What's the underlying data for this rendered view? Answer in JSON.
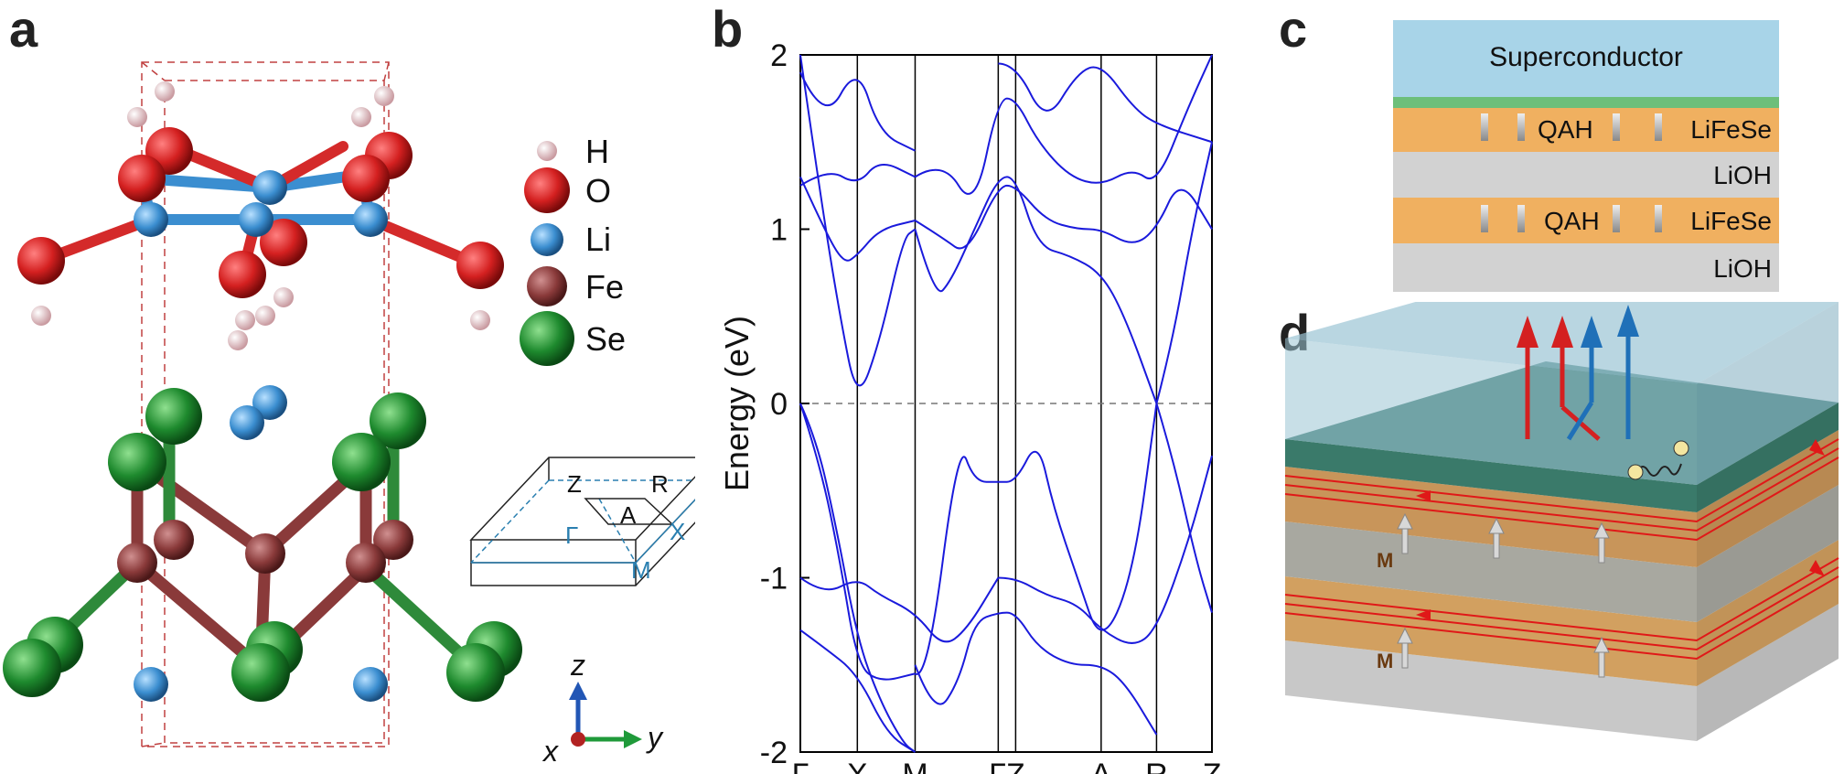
{
  "panels": {
    "a": "a",
    "b": "b",
    "c": "c",
    "d": "d"
  },
  "panel_a": {
    "legend": [
      {
        "label": "H",
        "color": "#e8c4c8"
      },
      {
        "label": "O",
        "color": "#d42a2a"
      },
      {
        "label": "Li",
        "color": "#3b8ed0"
      },
      {
        "label": "Fe",
        "color": "#8a3a3a"
      },
      {
        "label": "Se",
        "color": "#1e8a2e"
      }
    ],
    "bz_labels": {
      "Z": "Z",
      "R": "R",
      "A": "A",
      "Gamma": "Γ",
      "X": "X",
      "M": "M"
    },
    "axes": {
      "z": "z",
      "x": "x",
      "y": "y"
    }
  },
  "panel_c": {
    "layers": [
      {
        "label": "Superconductor",
        "color": "#a8d4e8"
      },
      {
        "label": "",
        "color": "#6dbf7a"
      },
      {
        "label": "LiFeSe",
        "qah": "QAH",
        "color": "#f0b060"
      },
      {
        "label": "LiOH",
        "color": "#d2d2d2"
      },
      {
        "label": "LiFeSe",
        "qah": "QAH",
        "color": "#f0b060"
      },
      {
        "label": "LiOH",
        "color": "#d2d2d2"
      }
    ]
  },
  "panel_d": {
    "m_labels": [
      "M",
      "M"
    ]
  },
  "chart_data": {
    "type": "line",
    "title": "",
    "xlabel": "",
    "ylabel": "Energy (eV)",
    "ylim": [
      -2,
      2
    ],
    "yticks": [
      -2,
      -1,
      0,
      1,
      2
    ],
    "ytick_labels": [
      "-2",
      "-1",
      "0",
      "1",
      "2"
    ],
    "kpath": [
      "Γ",
      "X",
      "M",
      "Γ",
      "Z",
      "A",
      "R",
      "Z"
    ],
    "kpath_labels": [
      "Γ",
      "X",
      "M",
      "ΓZ",
      "A",
      "R",
      "Z"
    ],
    "kpath_positions": [
      0,
      0.72,
      1.45,
      2.5,
      2.72,
      3.8,
      4.5,
      5.2
    ],
    "fermi_level": 0,
    "line_color": "#1a1adc",
    "series": [
      {
        "values": [
          [
            0,
            0.0
          ],
          [
            0.2,
            -0.2
          ],
          [
            0.45,
            -0.7
          ],
          [
            0.72,
            -1.35
          ],
          [
            1.0,
            -1.7
          ],
          [
            1.3,
            -1.95
          ],
          [
            1.45,
            -2.0
          ]
        ]
      },
      {
        "values": [
          [
            0,
            0.0
          ],
          [
            0.25,
            -0.35
          ],
          [
            0.5,
            -0.9
          ],
          [
            0.72,
            -1.5
          ],
          [
            1.0,
            -1.6
          ],
          [
            1.45,
            -1.55
          ]
        ]
      },
      {
        "values": [
          [
            0,
            -1.0
          ],
          [
            0.3,
            -1.1
          ],
          [
            0.72,
            -1.0
          ],
          [
            1.0,
            -1.1
          ],
          [
            1.45,
            -1.2
          ],
          [
            1.8,
            -1.4
          ],
          [
            2.1,
            -1.3
          ],
          [
            2.5,
            -1.0
          ]
        ]
      },
      {
        "values": [
          [
            0,
            -1.3
          ],
          [
            0.3,
            -1.4
          ],
          [
            0.72,
            -1.55
          ],
          [
            1.1,
            -1.9
          ],
          [
            1.45,
            -2.0
          ]
        ]
      },
      {
        "values": [
          [
            1.45,
            -1.5
          ],
          [
            1.7,
            -1.8
          ],
          [
            2.0,
            -1.6
          ],
          [
            2.2,
            -1.25
          ],
          [
            2.5,
            -1.2
          ],
          [
            2.72,
            -1.2
          ],
          [
            3.0,
            -1.4
          ],
          [
            3.4,
            -1.5
          ],
          [
            3.8,
            -1.5
          ],
          [
            4.1,
            -1.6
          ],
          [
            4.5,
            -1.9
          ]
        ]
      },
      {
        "values": [
          [
            1.45,
            -1.55
          ],
          [
            1.6,
            -1.6
          ],
          [
            2.0,
            -0.2
          ],
          [
            2.2,
            -0.45
          ],
          [
            2.5,
            -0.45
          ],
          [
            2.72,
            -0.45
          ],
          [
            3.0,
            -0.2
          ],
          [
            3.2,
            -0.6
          ],
          [
            3.5,
            -1.0
          ],
          [
            3.8,
            -1.4
          ],
          [
            4.2,
            -1.0
          ],
          [
            4.5,
            0.0
          ]
        ]
      },
      {
        "values": [
          [
            2.5,
            -1.0
          ],
          [
            2.72,
            -1.0
          ],
          [
            3.1,
            -1.1
          ],
          [
            3.5,
            -1.15
          ],
          [
            3.8,
            -1.3
          ],
          [
            4.2,
            -1.4
          ],
          [
            4.5,
            -1.3
          ],
          [
            4.9,
            -0.8
          ],
          [
            5.2,
            -0.3
          ]
        ]
      },
      {
        "values": [
          [
            4.5,
            0.0
          ],
          [
            4.7,
            -0.3
          ],
          [
            5.0,
            -0.9
          ],
          [
            5.2,
            -1.2
          ]
        ]
      },
      {
        "values": [
          [
            0,
            2.0
          ],
          [
            0.25,
            1.2
          ],
          [
            0.5,
            0.5
          ],
          [
            0.72,
            0.0
          ],
          [
            1.0,
            0.35
          ],
          [
            1.3,
            0.95
          ],
          [
            1.45,
            1.0
          ]
        ]
      },
      {
        "values": [
          [
            0,
            1.3
          ],
          [
            0.3,
            1.0
          ],
          [
            0.55,
            0.8
          ],
          [
            0.72,
            0.85
          ],
          [
            1.0,
            1.0
          ],
          [
            1.45,
            1.05
          ]
        ]
      },
      {
        "values": [
          [
            0,
            1.25
          ],
          [
            0.35,
            1.35
          ],
          [
            0.72,
            1.25
          ],
          [
            1.0,
            1.4
          ],
          [
            1.45,
            1.3
          ]
        ]
      },
      {
        "values": [
          [
            0,
            1.9
          ],
          [
            0.3,
            1.6
          ],
          [
            0.72,
            1.95
          ],
          [
            1.0,
            1.55
          ],
          [
            1.45,
            1.45
          ]
        ]
      },
      {
        "values": [
          [
            1.45,
            1.0
          ],
          [
            1.7,
            0.6
          ],
          [
            1.9,
            0.7
          ],
          [
            2.2,
            1.0
          ],
          [
            2.5,
            1.3
          ],
          [
            2.72,
            1.3
          ],
          [
            3.0,
            0.9
          ],
          [
            3.4,
            0.85
          ],
          [
            3.8,
            0.75
          ],
          [
            4.1,
            0.5
          ],
          [
            4.5,
            0.0
          ]
        ]
      },
      {
        "values": [
          [
            1.45,
            1.05
          ],
          [
            1.8,
            0.95
          ],
          [
            2.1,
            0.85
          ],
          [
            2.5,
            1.25
          ],
          [
            2.72,
            1.25
          ],
          [
            3.1,
            1.05
          ],
          [
            3.5,
            1.0
          ],
          [
            3.8,
            1.0
          ],
          [
            4.2,
            0.9
          ],
          [
            4.5,
            1.0
          ],
          [
            4.8,
            1.3
          ],
          [
            5.2,
            1.0
          ]
        ]
      },
      {
        "values": [
          [
            1.45,
            1.3
          ],
          [
            1.8,
            1.4
          ],
          [
            2.2,
            1.1
          ],
          [
            2.5,
            1.75
          ],
          [
            2.72,
            1.75
          ],
          [
            3.0,
            1.5
          ],
          [
            3.4,
            1.3
          ],
          [
            3.8,
            1.25
          ],
          [
            4.2,
            1.35
          ],
          [
            4.5,
            1.25
          ],
          [
            4.9,
            1.7
          ],
          [
            5.2,
            2.0
          ]
        ]
      },
      {
        "values": [
          [
            2.5,
            1.95
          ],
          [
            2.72,
            1.95
          ],
          [
            3.1,
            1.6
          ],
          [
            3.5,
            1.9
          ],
          [
            3.8,
            1.95
          ],
          [
            4.2,
            1.7
          ],
          [
            4.5,
            1.6
          ],
          [
            5.2,
            1.5
          ]
        ]
      },
      {
        "values": [
          [
            4.5,
            0.0
          ],
          [
            4.7,
            0.35
          ],
          [
            4.95,
            1.0
          ],
          [
            5.2,
            1.5
          ]
        ]
      }
    ]
  }
}
